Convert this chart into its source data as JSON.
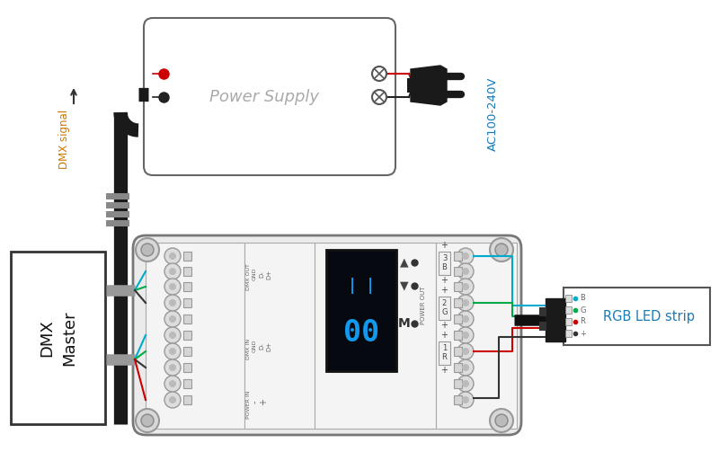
{
  "bg_color": "#ffffff",
  "ps_label": "Power Supply",
  "dm_label": "DMX\nMaster",
  "dmx_signal_label": "DMX signal",
  "ac_label": "AC100-240V",
  "rgb_label": "RGB LED strip",
  "wire_colors_dmx": [
    "#00aacc",
    "#00aa44",
    "#222222"
  ],
  "wire_colors_pwr": [
    "#00aacc",
    "#00aa44",
    "#222222",
    "#cc0000"
  ]
}
